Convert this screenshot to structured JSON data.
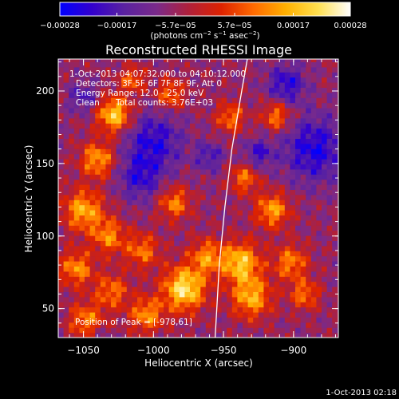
{
  "chart_data": {
    "type": "heatmap",
    "title": "Reconstructed RHESSI Image",
    "xlabel": "Heliocentric X (arcsec)",
    "ylabel": "Heliocentric Y (arcsec)",
    "xlim": [
      -1068,
      -868
    ],
    "ylim": [
      30,
      222
    ],
    "xticks": [
      -1050,
      -1000,
      -950,
      -900
    ],
    "yticks": [
      50,
      100,
      150,
      200
    ],
    "xtick_labels": [
      "−1050",
      "−1000",
      "−950",
      "−900"
    ],
    "ytick_labels": [
      "50",
      "100",
      "150",
      "200"
    ],
    "colorbar": {
      "range": [
        -0.00028,
        0.00028
      ],
      "ticks": [
        -0.00028,
        -0.00017,
        -5.7e-05,
        5.7e-05,
        0.00017,
        0.00028
      ],
      "tick_labels": [
        "−0.00028",
        "−0.00017",
        "−5.7e−05",
        "5.7e−05",
        "0.00017",
        "0.00028"
      ],
      "unit_parts": [
        "(photons cm",
        "−2",
        " s",
        "−1",
        " asec",
        "−2",
        ")"
      ],
      "colormap": [
        "#0000ff",
        "#3300cc",
        "#5a22a0",
        "#7a2a8a",
        "#b0203a",
        "#dd2200",
        "#ff6a00",
        "#ffb000",
        "#ffe050",
        "#ffffff"
      ]
    },
    "annotations": [
      "1-Oct-2013 04:07:32.000 to 04:10:12.000",
      "Detectors: 3F 5F 6F 7F 8F 9F, Att 0",
      "Energy Range: 12.0 - 25.0 keV",
      "Clean",
      "Total counts: 3.76E+03"
    ],
    "peak_label": "Position of Peak = [-978,61]",
    "limb": [
      [
        -956,
        30
      ],
      [
        -953,
        80
      ],
      [
        -949,
        120
      ],
      [
        -944,
        160
      ],
      [
        -937,
        200
      ],
      [
        -933,
        222
      ]
    ],
    "blobs": [
      {
        "x": -1028,
        "y": 184,
        "r": 12,
        "v": 0.9
      },
      {
        "x": -1040,
        "y": 153,
        "r": 12,
        "v": 0.7
      },
      {
        "x": -1050,
        "y": 118,
        "r": 14,
        "v": 0.75
      },
      {
        "x": -1032,
        "y": 100,
        "r": 12,
        "v": 0.6
      },
      {
        "x": -1055,
        "y": 78,
        "r": 12,
        "v": 0.65
      },
      {
        "x": -1030,
        "y": 62,
        "r": 12,
        "v": 0.55
      },
      {
        "x": -1048,
        "y": 42,
        "r": 12,
        "v": 0.6
      },
      {
        "x": -1008,
        "y": 90,
        "r": 12,
        "v": 0.55
      },
      {
        "x": -985,
        "y": 123,
        "r": 11,
        "v": 0.6
      },
      {
        "x": -978,
        "y": 64,
        "r": 15,
        "v": 1.0
      },
      {
        "x": -1005,
        "y": 46,
        "r": 12,
        "v": 0.65
      },
      {
        "x": -962,
        "y": 86,
        "r": 12,
        "v": 0.6
      },
      {
        "x": -988,
        "y": 198,
        "r": 10,
        "v": 0.55
      },
      {
        "x": -1015,
        "y": 208,
        "r": 9,
        "v": 0.5
      },
      {
        "x": -938,
        "y": 82,
        "r": 14,
        "v": 0.85
      },
      {
        "x": -930,
        "y": 58,
        "r": 14,
        "v": 0.75
      },
      {
        "x": -915,
        "y": 118,
        "r": 12,
        "v": 0.7
      },
      {
        "x": -935,
        "y": 140,
        "r": 10,
        "v": 0.55
      },
      {
        "x": -902,
        "y": 82,
        "r": 12,
        "v": 0.6
      },
      {
        "x": -912,
        "y": 183,
        "r": 10,
        "v": 0.6
      },
      {
        "x": -892,
        "y": 60,
        "r": 10,
        "v": 0.55
      },
      {
        "x": -945,
        "y": 182,
        "r": 10,
        "v": 0.55
      },
      {
        "x": -1040,
        "y": 30,
        "r": 8,
        "v": -0.2
      },
      {
        "x": -1000,
        "y": 165,
        "r": 20,
        "v": -0.55
      },
      {
        "x": -1010,
        "y": 140,
        "r": 15,
        "v": -0.45
      },
      {
        "x": -885,
        "y": 160,
        "r": 22,
        "v": -0.6
      },
      {
        "x": -905,
        "y": 205,
        "r": 13,
        "v": -0.55
      },
      {
        "x": -925,
        "y": 157,
        "r": 10,
        "v": -0.45
      },
      {
        "x": -1050,
        "y": 196,
        "r": 10,
        "v": -0.4
      },
      {
        "x": -960,
        "y": 155,
        "r": 10,
        "v": -0.4
      }
    ],
    "grid": false,
    "legend": "none"
  },
  "footer": {
    "timestamp": "1-Oct-2013 02:18"
  }
}
